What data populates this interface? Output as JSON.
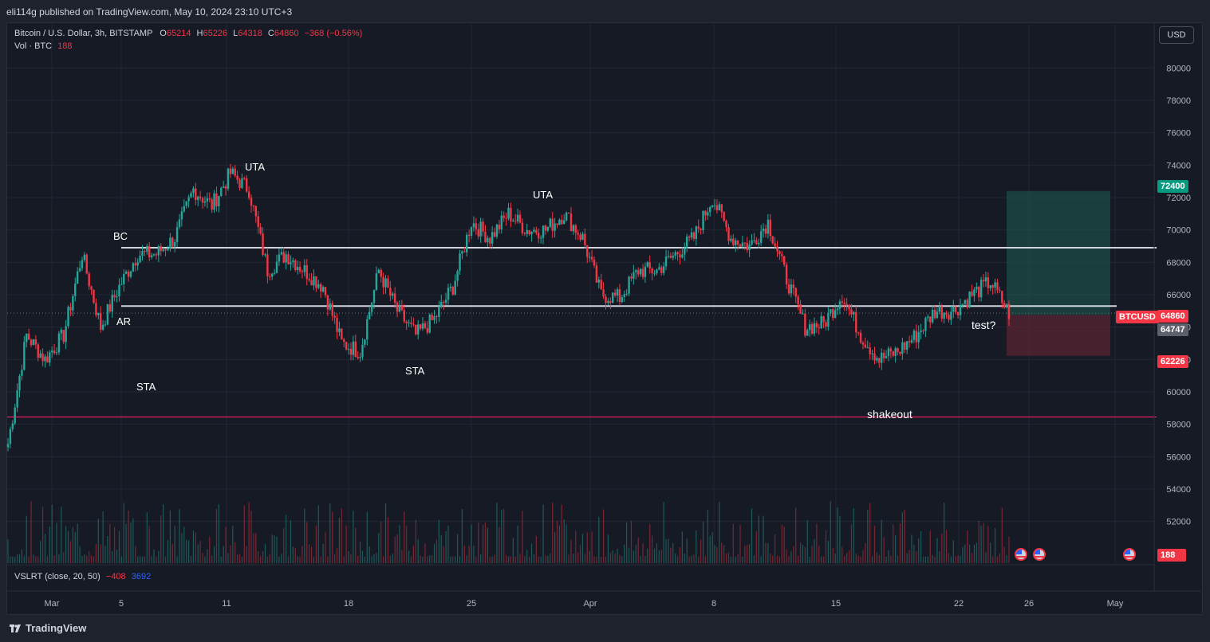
{
  "header": {
    "published_by": "eli114g published on TradingView.com, May 10, 2024 23:10 UTC+3"
  },
  "legend": {
    "symbol": "Bitcoin / U.S. Dollar, 3h, BITSTAMP",
    "o_label": "O",
    "o_value": "65214",
    "h_label": "H",
    "h_value": "65226",
    "l_label": "L",
    "l_value": "64318",
    "c_label": "C",
    "c_value": "64860",
    "change": "−368 (−0.56%)",
    "vol_label": "Vol · BTC",
    "vol_value": "188"
  },
  "indicator": {
    "name": "VSLRT (close, 20, 50)",
    "value1": "−408",
    "value2": "3692"
  },
  "currency_button": "USD",
  "price_axis": {
    "ticks": [
      "80000",
      "78000",
      "76000",
      "74000",
      "72000",
      "70000",
      "68000",
      "66000",
      "64000",
      "62000",
      "60000",
      "58000",
      "56000",
      "54000",
      "52000"
    ],
    "ymin": 51000,
    "ymax": 80800
  },
  "time_axis": {
    "labels": [
      "Mar",
      "5",
      "11",
      "18",
      "25",
      "Apr",
      "8",
      "15",
      "22",
      "26",
      "May"
    ]
  },
  "price_tags": {
    "target": "72400",
    "symbol": "BTCUSD",
    "last": "64860",
    "entry": "64747",
    "stop": "62226",
    "volume": "188"
  },
  "annotations": {
    "bc": "BC",
    "ar": "AR",
    "sta1": "STA",
    "uta1": "UTA",
    "sta2": "STA",
    "uta2": "UTA",
    "shakeout": "shakeout",
    "test": "test?"
  },
  "levels": {
    "upper": 68900,
    "lower": 65300,
    "support": 58450
  },
  "position": {
    "target": 72400,
    "entry": 64747,
    "stop": 62226
  },
  "colors": {
    "up": "#26a69a",
    "down": "#f23645",
    "background": "#161a25",
    "level_line": "#d1d4dc",
    "support_line": "#e91e63",
    "profit_zone": "#1e5c4f",
    "loss_zone": "#5c2530"
  },
  "chart_data": {
    "type": "candlestick",
    "anchors": [
      [
        "Mar 1",
        56800
      ],
      [
        "Mar 2",
        63500
      ],
      [
        "Mar 3",
        62000
      ],
      [
        "Mar 4",
        63500
      ],
      [
        "Mar 5",
        68500
      ],
      [
        "Mar 6",
        64000
      ],
      [
        "Mar 7",
        66500
      ],
      [
        "Mar 8",
        68500
      ],
      [
        "Mar 9",
        68500
      ],
      [
        "Mar 10",
        69500
      ],
      [
        "Mar 11",
        72500
      ],
      [
        "Mar 12",
        71500
      ],
      [
        "Mar 13",
        73500
      ],
      [
        "Mar 14",
        72500
      ],
      [
        "Mar 15",
        67500
      ],
      [
        "Mar 16",
        68500
      ],
      [
        "Mar 17",
        67500
      ],
      [
        "Mar 18",
        66500
      ],
      [
        "Mar 19",
        63000
      ],
      [
        "Mar 20",
        62500
      ],
      [
        "Mar 21",
        67500
      ],
      [
        "Mar 22",
        65000
      ],
      [
        "Mar 23",
        63500
      ],
      [
        "Mar 24",
        64500
      ],
      [
        "Mar 25",
        66500
      ],
      [
        "Mar 26",
        70500
      ],
      [
        "Mar 27",
        69500
      ],
      [
        "Mar 28",
        71000
      ],
      [
        "Mar 29",
        70000
      ],
      [
        "Mar 30",
        70000
      ],
      [
        "Mar 31",
        71000
      ],
      [
        "Apr 1",
        69500
      ],
      [
        "Apr 2",
        66000
      ],
      [
        "Apr 3",
        65800
      ],
      [
        "Apr 4",
        67500
      ],
      [
        "Apr 5",
        67500
      ],
      [
        "Apr 6",
        68500
      ],
      [
        "Apr 7",
        69500
      ],
      [
        "Apr 8",
        72000
      ],
      [
        "Apr 9",
        69500
      ],
      [
        "Apr 10",
        69000
      ],
      [
        "Apr 11",
        70500
      ],
      [
        "Apr 12",
        67000
      ],
      [
        "Apr 13",
        64000
      ],
      [
        "Apr 14",
        64200
      ],
      [
        "Apr 15",
        66000
      ],
      [
        "Apr 16",
        63500
      ],
      [
        "Apr 17",
        62000
      ],
      [
        "Apr 18",
        62500
      ],
      [
        "Apr 19",
        63500
      ],
      [
        "Apr 20",
        65000
      ],
      [
        "Apr 21",
        65000
      ],
      [
        "Apr 22",
        66000
      ],
      [
        "Apr 23",
        66800
      ],
      [
        "Apr 24",
        64860
      ]
    ],
    "ohlc_last": {
      "open": 65214,
      "high": 65226,
      "low": 64318,
      "close": 64860
    },
    "interval": "3h",
    "ylim": [
      51000,
      80800
    ]
  }
}
